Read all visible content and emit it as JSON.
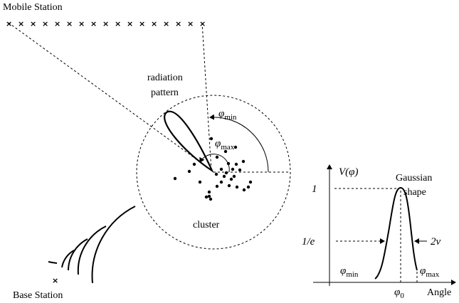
{
  "labels": {
    "mobile_station": "Mobile Station",
    "base_station": "Base Station",
    "radiation_pattern_line1": "radiation",
    "radiation_pattern_line2": "pattern",
    "cluster": "cluster",
    "gaussian_line1": "Gaussian",
    "gaussian_line2": "shape",
    "angle": "Angle"
  },
  "math": {
    "phi_min_symbol": "φ",
    "phi_min_sub": "min",
    "phi_max_symbol": "φ",
    "phi_max_sub": "max",
    "v_phi": "V(φ)",
    "one": "1",
    "one_over_e": "1/e",
    "two_nu": "2ν",
    "graph_phi_min_symbol": "φ",
    "graph_phi_min_sub": "min",
    "graph_phi_max_symbol": "φ",
    "graph_phi_max_sub": "max",
    "phi0_symbol": "φ",
    "phi0_sub": "0"
  },
  "mobile_station_marks": "×",
  "base_station_mark": "×",
  "colors": {
    "ink": "#000000",
    "background": "#ffffff"
  }
}
